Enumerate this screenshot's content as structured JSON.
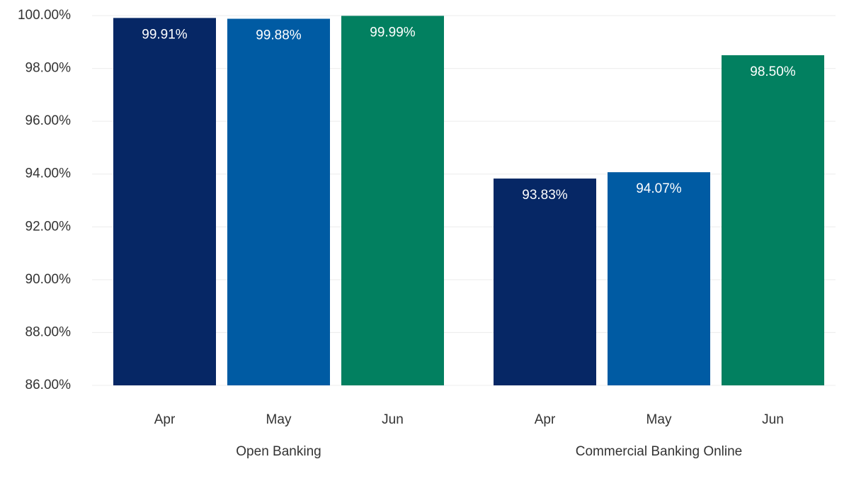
{
  "chart_data": {
    "type": "bar",
    "categories": [
      "Open Banking",
      "Commercial Banking Online"
    ],
    "series": [
      {
        "name": "Apr",
        "color": "#062765",
        "values": [
          99.91,
          93.83
        ],
        "value_labels": [
          "99.91%",
          "93.83%"
        ]
      },
      {
        "name": "May",
        "color": "#005ba3",
        "values": [
          99.88,
          94.07
        ],
        "value_labels": [
          "99.88%",
          "94.07%"
        ]
      },
      {
        "name": "Jun",
        "color": "#028060",
        "values": [
          99.99,
          98.5
        ],
        "value_labels": [
          "99.99%",
          "98.50%"
        ]
      }
    ],
    "ylim": [
      86,
      100
    ],
    "yticks": [
      {
        "value": 86,
        "label": "86.00%"
      },
      {
        "value": 88,
        "label": "88.00%"
      },
      {
        "value": 90,
        "label": "90.00%"
      },
      {
        "value": 92,
        "label": "92.00%"
      },
      {
        "value": 94,
        "label": "94.00%"
      },
      {
        "value": 96,
        "label": "96.00%"
      },
      {
        "value": 98,
        "label": "98.00%"
      },
      {
        "value": 100,
        "label": "100.00%"
      }
    ],
    "grid": true
  }
}
